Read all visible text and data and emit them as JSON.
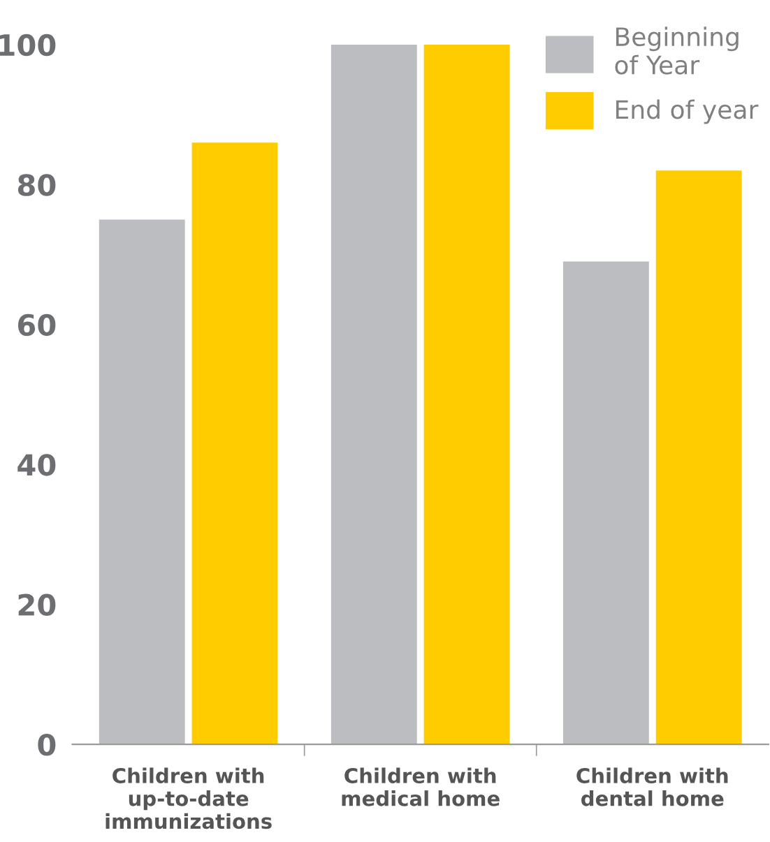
{
  "chart_data": {
    "type": "bar",
    "categories": [
      "Children with\nup-to-date\nimmunizations",
      "Children with\nmedical home",
      "Children with\ndental home"
    ],
    "series": [
      {
        "name": "Beginning\nof Year",
        "color": "#bcbdc0",
        "values": [
          75,
          100,
          69
        ]
      },
      {
        "name": "End of year",
        "color": "#ffcc00",
        "values": [
          86,
          100,
          82
        ]
      }
    ],
    "ylim": [
      0,
      100
    ],
    "yticks": [
      0,
      20,
      40,
      60,
      80,
      100
    ],
    "grid": false,
    "legend": "top right"
  }
}
